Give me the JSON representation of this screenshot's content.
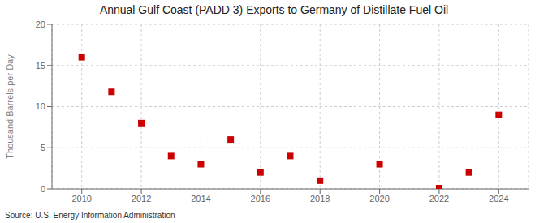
{
  "chart_data": {
    "type": "scatter",
    "title": "Annual Gulf Coast (PADD 3) Exports to Germany of Distillate Fuel Oil",
    "ylabel": "Thousand Barrels per Day",
    "annotations": [
      "Source: U.S. Energy Information Administration"
    ],
    "x": [
      2010,
      2011,
      2012,
      2013,
      2014,
      2015,
      2016,
      2017,
      2018,
      2019,
      2020,
      2021,
      2022,
      2023,
      2024
    ],
    "values": [
      16.0,
      11.8,
      8.0,
      4.0,
      3.0,
      6.0,
      2.0,
      4.0,
      1.0,
      null,
      3.0,
      null,
      0.1,
      2.0,
      9.0
    ],
    "color": "#cc0000",
    "marker": "square",
    "xlim": [
      2009,
      2025
    ],
    "xticks": [
      2010,
      2012,
      2014,
      2016,
      2018,
      2020,
      2022,
      2024
    ],
    "ylim": [
      0,
      20
    ],
    "yticks": [
      0,
      5,
      10,
      15,
      20
    ],
    "grid": true
  }
}
